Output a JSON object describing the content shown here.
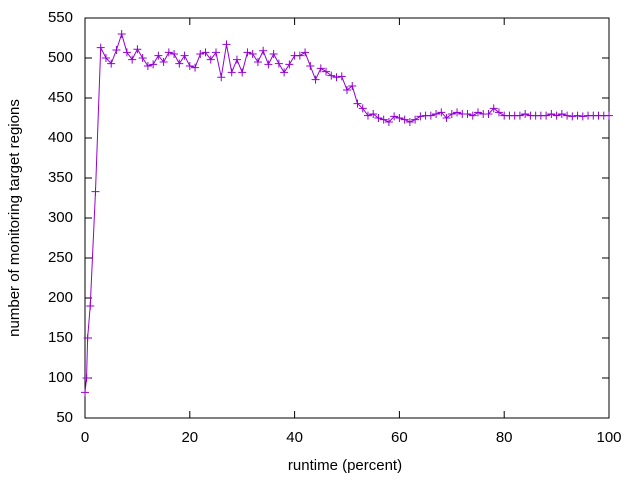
{
  "chart_data": {
    "type": "line",
    "x_label": "runtime (percent)",
    "y_label": "number of monitoring target regions",
    "color": "#9400d3",
    "markers": true,
    "x": [
      0,
      0.3,
      0.5,
      1,
      2,
      3,
      4,
      5,
      6,
      7,
      8,
      9,
      10,
      11,
      12,
      13,
      14,
      15,
      16,
      17,
      18,
      19,
      20,
      21,
      22,
      23,
      24,
      25,
      26,
      27,
      28,
      29,
      30,
      31,
      32,
      33,
      34,
      35,
      36,
      37,
      38,
      39,
      40,
      41,
      42,
      43,
      44,
      45,
      46,
      47,
      48,
      49,
      50,
      51,
      52,
      53,
      54,
      55,
      56,
      57,
      58,
      59,
      60,
      61,
      62,
      63,
      64,
      65,
      66,
      67,
      68,
      69,
      70,
      71,
      72,
      73,
      74,
      75,
      76,
      77,
      78,
      79,
      80,
      81,
      82,
      83,
      84,
      85,
      86,
      87,
      88,
      89,
      90,
      91,
      92,
      93,
      94,
      95,
      96,
      97,
      98,
      99,
      100
    ],
    "values": [
      82,
      100,
      150,
      190,
      333,
      513,
      500,
      493,
      510,
      530,
      507,
      498,
      511,
      500,
      490,
      492,
      503,
      495,
      507,
      505,
      493,
      503,
      490,
      488,
      505,
      507,
      498,
      507,
      476,
      517,
      482,
      498,
      482,
      507,
      505,
      495,
      509,
      492,
      505,
      493,
      482,
      492,
      503,
      503,
      507,
      490,
      473,
      487,
      483,
      478,
      476,
      477,
      460,
      465,
      443,
      437,
      428,
      430,
      425,
      423,
      420,
      427,
      425,
      423,
      420,
      423,
      427,
      428,
      428,
      430,
      432,
      425,
      430,
      432,
      430,
      430,
      428,
      432,
      430,
      430,
      437,
      432,
      428,
      428,
      428,
      428,
      430,
      428,
      428,
      428,
      428,
      430,
      428,
      430,
      428,
      427,
      428,
      427,
      428,
      428,
      428,
      428,
      428
    ],
    "xlim": [
      0,
      100
    ],
    "xticks": [
      0,
      20,
      40,
      60,
      80,
      100
    ],
    "ylim": [
      50,
      550
    ],
    "yticks": [
      50,
      100,
      150,
      200,
      250,
      300,
      350,
      400,
      450,
      500,
      550
    ],
    "grid": false
  }
}
